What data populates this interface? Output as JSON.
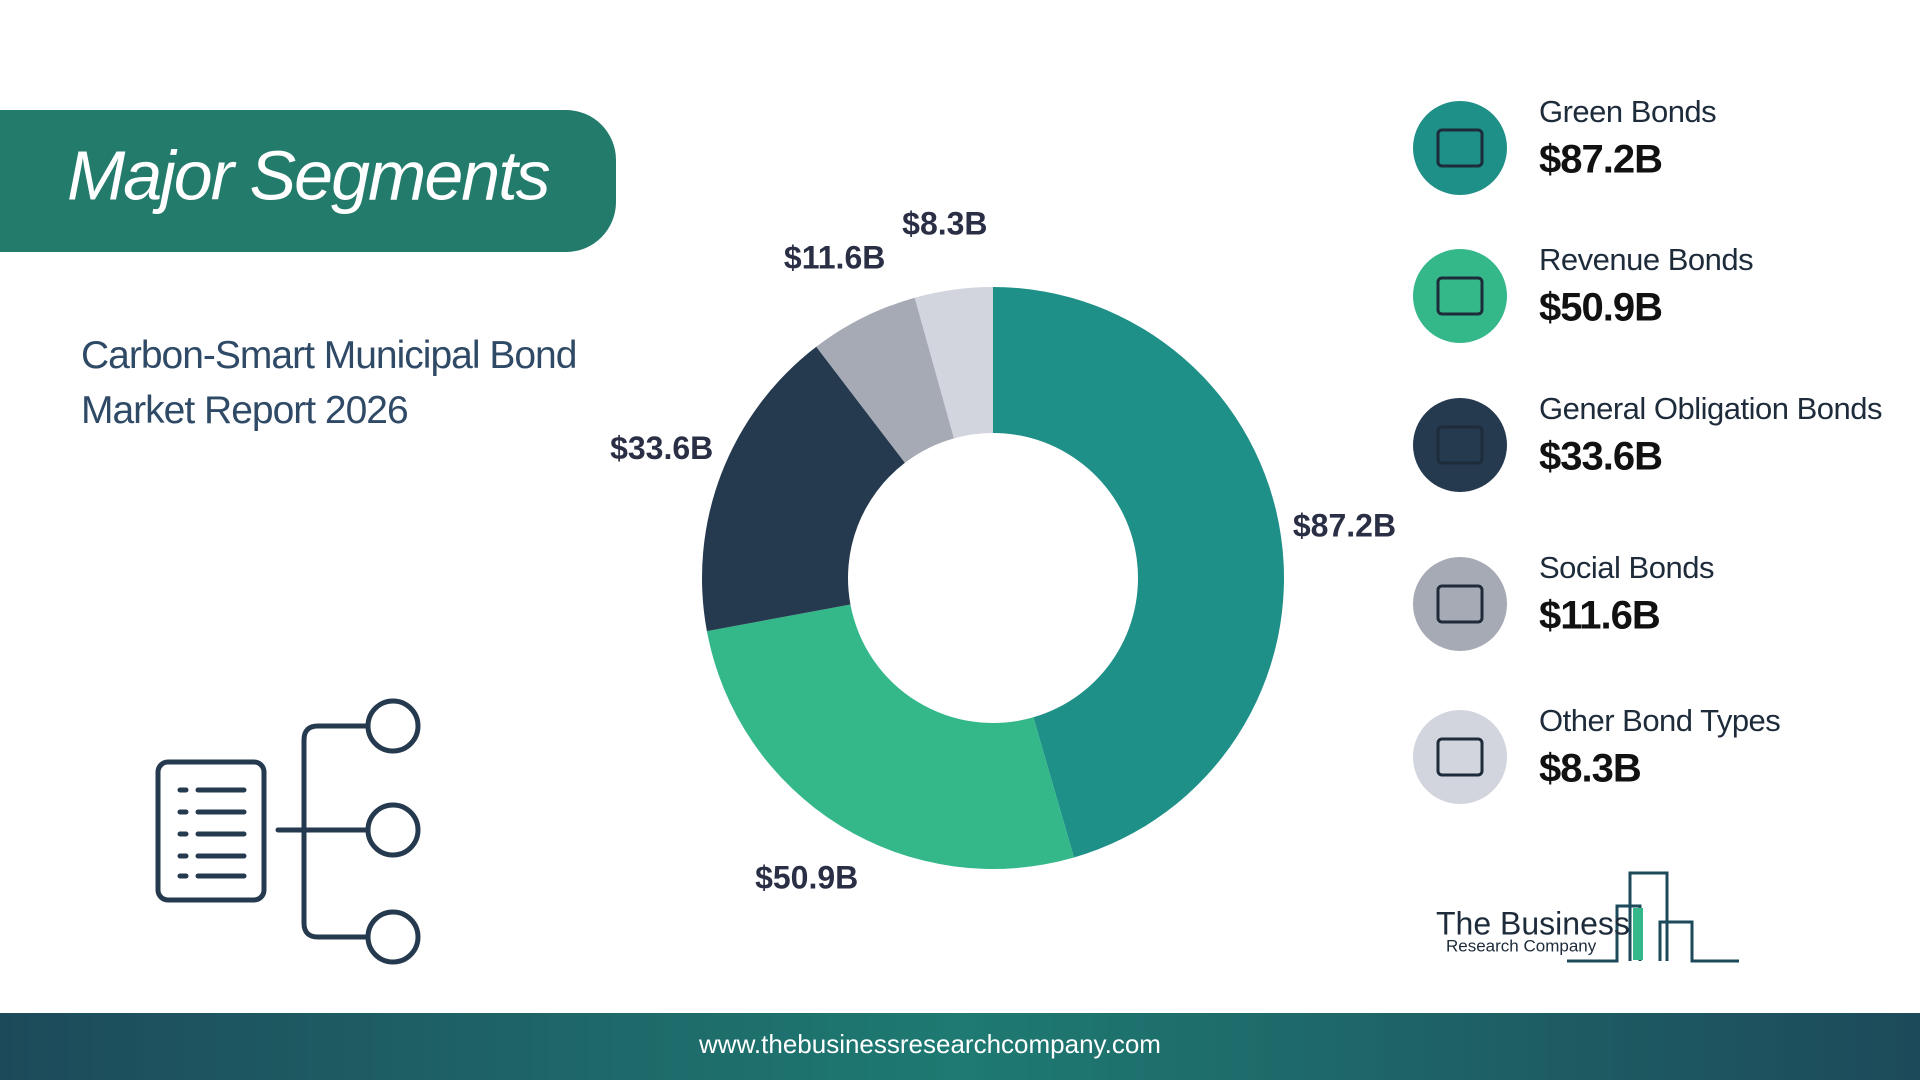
{
  "chart_data": {
    "type": "donut",
    "title": "Major Segments",
    "subtitle": "Carbon-Smart Municipal Bond Market Report 2026",
    "categories": [
      "Green Bonds",
      "Revenue Bonds",
      "General Obligation Bonds",
      "Social Bonds",
      "Other Bond Types"
    ],
    "values": [
      87.2,
      50.9,
      33.6,
      11.6,
      8.3
    ],
    "value_labels": [
      "$87.2B",
      "$50.9B",
      "$33.6B",
      "$11.6B",
      "$8.3B"
    ],
    "colors": [
      "#1e9088",
      "#34b88a",
      "#253a4f",
      "#a6aab5",
      "#d3d5de"
    ]
  },
  "logo": {
    "name": "The Business",
    "tagline": "Research Company"
  },
  "footer": {
    "url": "www.thebusinessresearchcompany.com"
  }
}
